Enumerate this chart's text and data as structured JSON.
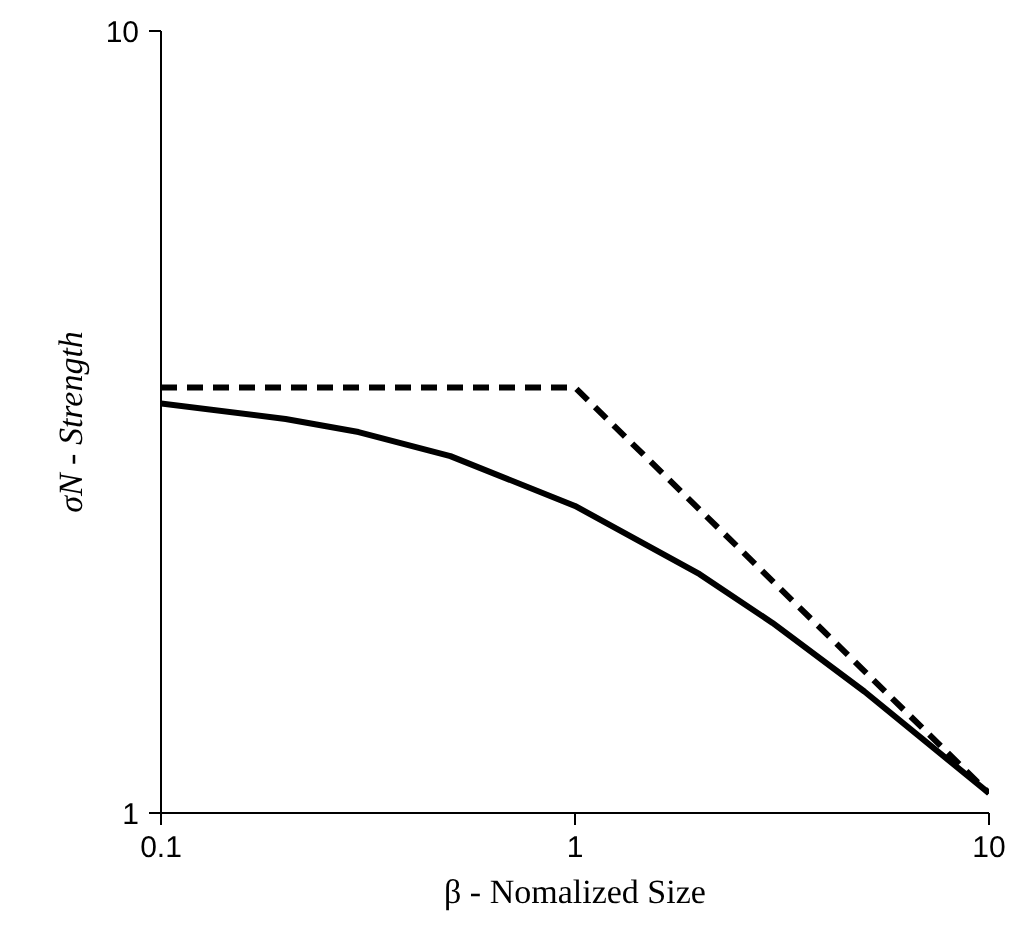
{
  "chart_data": {
    "type": "line",
    "xlabel": "β - Nomalized Size",
    "ylabel": "σN - Strength",
    "log": "xy",
    "xlim": [
      0.1,
      10
    ],
    "ylim": [
      1,
      10
    ],
    "xticks": [
      0.1,
      1,
      10
    ],
    "yticks": [
      1,
      10
    ],
    "marker": "none",
    "series": [
      {
        "color": "#000000",
        "line_style": "dashed",
        "x": [
          0.1,
          1,
          10
        ],
        "values": [
          3.5,
          3.5,
          1.06
        ]
      },
      {
        "color": "#000000",
        "line_style": "solid",
        "x": [
          0.1,
          0.2,
          0.3,
          0.5,
          1,
          2,
          3,
          5,
          10
        ],
        "values": [
          3.34,
          3.19,
          3.07,
          2.86,
          2.47,
          2.02,
          1.75,
          1.43,
          1.06
        ]
      }
    ]
  }
}
